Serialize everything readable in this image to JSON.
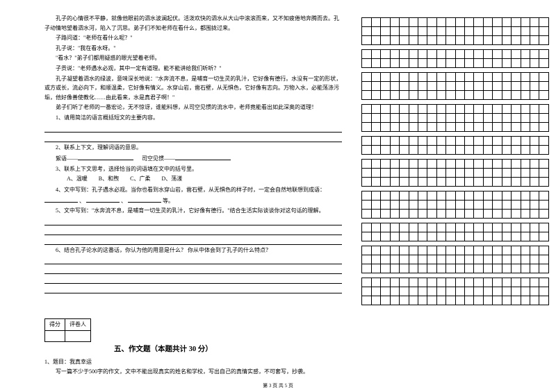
{
  "passage": {
    "p1": "孔子的心情很不平静，就像他眼前的泗水波澜起伏。活泼欢快的泗水从大山中滚滚而来，又不知疲倦地奔腾而去。孔子动情地望着泗水河，陷入了沉思。弟子们不知老师在看什么，都围拢过来。",
    "p2": "子路问道：\"老师在看什么呢？\"",
    "p3": "孔子说：\"我在看水呀。\"",
    "p4": "\"看水？\"弟子们都用疑惑的眼光望着老师。",
    "p5": "子贡说：\"老师遇水必观，其中一定有道理。能不能讲给我们听听？\"",
    "p6": "孔子凝望着泗水的绿波，意味深长地说：\"水奔流不息，是哺育一切生灵的乳汁，它好像有德行。水没有一定的形状，或方或长，流必向下，和顺温柔，它好像有情义。水穿山岩，凿石壁，从无惧色，它好像有志向。万物入水，必能荡涤污垢，他好像善使教化……由此看来，水是真君子啊！\"",
    "p7": "弟子们听了老师的一番宏论，无不惊讶，谁能料想，从司空见惯的流水中，老师竟能看出如此深奥的道理！"
  },
  "questions": {
    "q1": "1、请用简洁的语言概括短文的主要内容。",
    "q2": "2、联系上下文，理解词语的意思。",
    "q2a": "絮语——",
    "q2b": "司空见惯——",
    "q3": "3、联系上下文思考，选择恰当的词语填在文中的括号里。",
    "optA": "A、温暖",
    "optB": "B、和煦",
    "optC": "C、广柔",
    "optD": "D、荡漾",
    "q4a": "4、文中写到：孔子遇水必观。当你也看到水穿山岩，凿石壁，从无惧色的样子时，一定会自然地联想到成语：",
    "q4b": "、",
    "q4c": "、",
    "q4d": "等。",
    "q5": "5、文中写到：\"水奔流不息，是哺育一切生灵的乳汁，它好像有德行。\"结合生活实际谈谈你对这句话的理解。",
    "q6": "6、结合孔子论水的这番话，你认为他的用意是什么？ 你从中体会到了孔子的什么特点？"
  },
  "scorebox": {
    "c1": "得分",
    "c2": "评卷人"
  },
  "section": {
    "title": "五、作文题（本题共计 30 分）"
  },
  "composition": {
    "l1": "1、题目：我真幸运",
    "l2": "写一篇不少于500字的作文，文中不能出现真实的姓名和学校，写出自己的真情实感，不可套写，抄袭。"
  },
  "footer": {
    "text": "第 3 页 共 5 页"
  },
  "grid": {
    "cols": 20,
    "blocks": [
      3,
      2,
      3,
      3,
      2,
      3,
      3,
      2,
      3,
      3
    ]
  },
  "style": {
    "line_w1": 240,
    "line_w2": 200,
    "line_w3": 80,
    "line_w4": 48
  }
}
